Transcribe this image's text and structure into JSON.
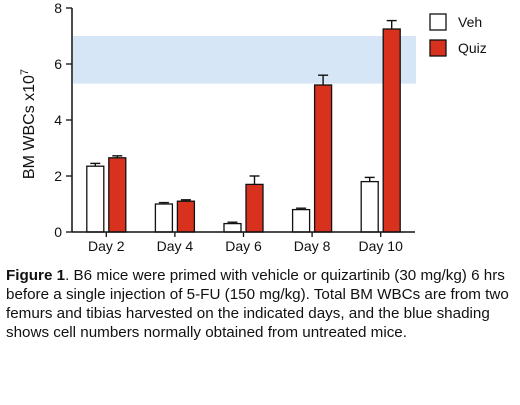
{
  "chart_data": {
    "type": "bar",
    "categories": [
      "Day 2",
      "Day 4",
      "Day 6",
      "Day 8",
      "Day 10"
    ],
    "series": [
      {
        "name": "Veh",
        "values": [
          2.35,
          1.0,
          0.3,
          0.8,
          1.8
        ],
        "errors": [
          0.1,
          0.05,
          0.05,
          0.05,
          0.15
        ],
        "fill": "#ffffff",
        "stroke": "#111111"
      },
      {
        "name": "Quiz",
        "values": [
          2.65,
          1.1,
          1.7,
          5.25,
          7.25
        ],
        "errors": [
          0.07,
          0.05,
          0.3,
          0.35,
          0.3
        ],
        "fill": "#d8321f",
        "stroke": "#111111"
      }
    ],
    "ylabel_main": "BM WBCs x10",
    "ylabel_exp": "7",
    "ylim": [
      0,
      8
    ],
    "yticks": [
      0,
      2,
      4,
      6,
      8
    ],
    "normal_range": [
      5.3,
      7.0
    ],
    "normal_range_color": "#d6e6f7",
    "legend_position": "top-right"
  },
  "caption": {
    "label": "Figure 1",
    "text": ". B6 mice were primed with vehicle or quizartinib (30 mg/kg) 6 hrs before a single injection of 5-FU (150 mg/kg). Total BM WBCs are from two femurs and tibias harvested on the indicated days, and the blue shading shows cell numbers normally obtained from untreated mice."
  }
}
